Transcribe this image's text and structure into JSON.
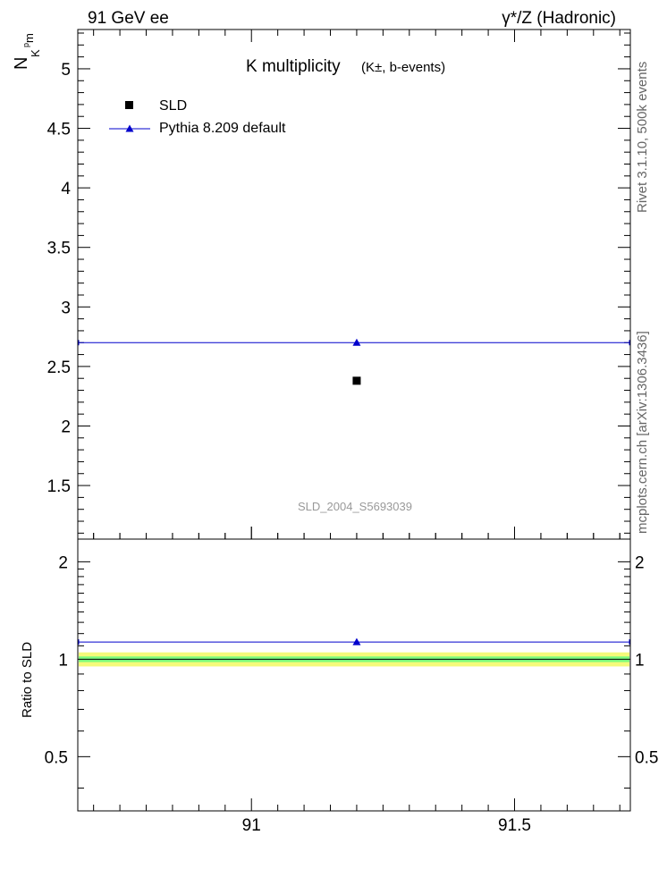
{
  "header": {
    "left": "91 GeV ee",
    "right": "γ*/Z (Hadronic)"
  },
  "side_text": {
    "rivet": "Rivet 3.1.10,  500k events",
    "mcplots": "mcplots.cern.ch [arXiv:1306.3436]"
  },
  "chart_data": {
    "type": "scatter",
    "title_main": "K multiplicity",
    "title_sub": "(K±, b-events)",
    "ylabel_main": "N",
    "ylabel_sub": "K",
    "ylabel_sup": "p",
    "ylabel_tail": "m",
    "ylabel_ratio": "Ratio to SLD",
    "watermark": "SLD_2004_S5693039",
    "xlim": [
      90.67,
      91.72
    ],
    "ylim_main": [
      1.05,
      5.33
    ],
    "ylim_ratio": [
      0.34,
      2.35
    ],
    "x_ticks": [
      {
        "value": 91,
        "label": "91"
      },
      {
        "value": 91.5,
        "label": "91.5"
      }
    ],
    "y_ticks_main": [
      {
        "value": 1.5,
        "label": "1.5"
      },
      {
        "value": 2,
        "label": "2"
      },
      {
        "value": 2.5,
        "label": "2.5"
      },
      {
        "value": 3,
        "label": "3"
      },
      {
        "value": 3.5,
        "label": "3.5"
      },
      {
        "value": 4,
        "label": "4"
      },
      {
        "value": 4.5,
        "label": "4.5"
      },
      {
        "value": 5,
        "label": "5"
      }
    ],
    "y_ticks_ratio": [
      {
        "value": 0.5,
        "label": "0.5"
      },
      {
        "value": 1,
        "label": "1"
      },
      {
        "value": 2,
        "label": "2"
      }
    ],
    "series": [
      {
        "name": "SLD",
        "color": "#000000",
        "marker": "square",
        "x": [
          91.2
        ],
        "y": [
          2.38
        ],
        "ratio": [
          1.0
        ]
      },
      {
        "name": "Pythia 8.209 default",
        "color": "#0000cc",
        "marker": "triangle",
        "x": [
          91.2
        ],
        "y": [
          2.7
        ],
        "ratio": [
          1.13
        ],
        "xrange": [
          90.67,
          91.72
        ]
      }
    ],
    "ratio_band": {
      "inner": [
        0.98,
        1.02
      ],
      "outer": [
        0.95,
        1.05
      ],
      "inner_color": "#7cfc7c",
      "outer_color": "#f4fa7a"
    },
    "legend_position": "top-left",
    "grid": false
  }
}
